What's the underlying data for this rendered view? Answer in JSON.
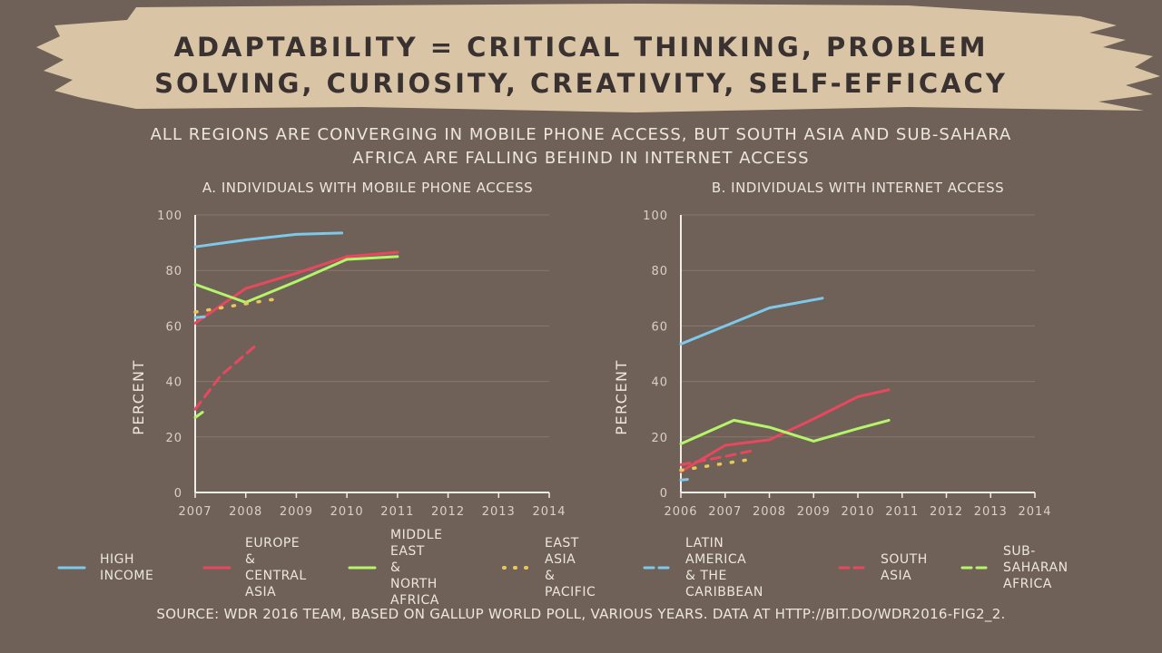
{
  "title_line1": "ADAPTABILITY = CRITICAL THINKING, PROBLEM",
  "title_line2": "SOLVING, CURIOSITY, CREATIVITY, SELF-EFFICACY",
  "subtitle_line1": "ALL REGIONS ARE CONVERGING IN MOBILE PHONE ACCESS, BUT SOUTH ASIA AND SUB-SAHARA",
  "subtitle_line2": "AFRICA ARE FALLING BEHIND IN INTERNET ACCESS",
  "source": "SOURCE: WDR 2016 TEAM, BASED ON GALLUP WORLD POLL, VARIOUS YEARS. DATA AT HTTP://BIT.DO/WDR2016-FIG2_2.",
  "colors": {
    "background": "#6f6158",
    "brush": "#d9c5a6",
    "high_income": "#7ec8ea",
    "europe_central_asia": "#e8485e",
    "middle_east_north_africa": "#b5f56a",
    "east_asia_pacific": "#e9c85a",
    "latin_america_caribbean": "#7ec8ea",
    "south_asia": "#e8485e",
    "sub_saharan_africa": "#b5f56a"
  },
  "legend": [
    {
      "key": "high_income",
      "label": "HIGH\nINCOME",
      "style": "solid"
    },
    {
      "key": "europe_central_asia",
      "label": "EUROPE &\nCENTRAL\nASIA",
      "style": "solid"
    },
    {
      "key": "middle_east_north_africa",
      "label": "MIDDLE EAST\n& NORTH\nAFRICA",
      "style": "solid"
    },
    {
      "key": "east_asia_pacific",
      "label": "EAST ASIA\n& PACIFIC",
      "style": "dotted"
    },
    {
      "key": "latin_america_caribbean",
      "label": "LATIN AMERICA\n& THE CARIBBEAN",
      "style": "dashed"
    },
    {
      "key": "south_asia",
      "label": "SOUTH\nASIA",
      "style": "dashed"
    },
    {
      "key": "sub_saharan_africa",
      "label": "SUB-SAHARAN\nAFRICA",
      "style": "dashed"
    }
  ],
  "chart_data": [
    {
      "type": "line",
      "title": "A. INDIVIDUALS WITH MOBILE PHONE ACCESS",
      "ylabel": "PERCENT",
      "xlabel": "",
      "xlim": [
        2007,
        2014
      ],
      "ylim": [
        0,
        100
      ],
      "x_ticks": [
        "2007",
        "2008",
        "2009",
        "2010",
        "2011",
        "2012",
        "2013",
        "2014"
      ],
      "y_ticks": [
        "0",
        "20",
        "40",
        "60",
        "80",
        "100"
      ],
      "grid": true,
      "series": [
        {
          "name": "HIGH INCOME",
          "key": "high_income",
          "style": "solid",
          "points": [
            [
              2007,
              88.5
            ],
            [
              2008,
              91
            ],
            [
              2009,
              93
            ],
            [
              2009.9,
              93.5
            ]
          ]
        },
        {
          "name": "EUROPE & CENTRAL ASIA",
          "key": "europe_central_asia",
          "style": "solid",
          "points": [
            [
              2007,
              61
            ],
            [
              2008,
              73.5
            ],
            [
              2009,
              79
            ],
            [
              2010,
              85
            ],
            [
              2011,
              86.5
            ]
          ]
        },
        {
          "name": "MIDDLE EAST & NORTH AFRICA",
          "key": "middle_east_north_africa",
          "style": "solid",
          "points": [
            [
              2007,
              75
            ],
            [
              2008,
              68.5
            ],
            [
              2009,
              76
            ],
            [
              2010,
              84
            ],
            [
              2011,
              85
            ]
          ]
        },
        {
          "name": "EAST ASIA & PACIFIC",
          "key": "east_asia_pacific",
          "style": "dotted",
          "points": [
            [
              2007,
              65
            ],
            [
              2007.5,
              66.5
            ],
            [
              2008,
              68
            ],
            [
              2008.7,
              70
            ]
          ]
        },
        {
          "name": "LATIN AMERICA & THE CARIBBEAN",
          "key": "latin_america_caribbean",
          "style": "dashed",
          "points": [
            [
              2007,
              63
            ],
            [
              2007.3,
              63.5
            ]
          ]
        },
        {
          "name": "SOUTH ASIA",
          "key": "south_asia",
          "style": "dashed",
          "points": [
            [
              2007,
              30
            ],
            [
              2007.5,
              42
            ],
            [
              2008.2,
              53
            ]
          ]
        },
        {
          "name": "SUB-SAHARAN AFRICA",
          "key": "sub_saharan_africa",
          "style": "dashed",
          "points": [
            [
              2007,
              27
            ],
            [
              2007.15,
              29
            ]
          ]
        }
      ]
    },
    {
      "type": "line",
      "title": "B. INDIVIDUALS WITH INTERNET ACCESS",
      "ylabel": "PERCENT",
      "xlabel": "",
      "xlim": [
        2006,
        2014
      ],
      "ylim": [
        0,
        100
      ],
      "x_ticks": [
        "2006",
        "2007",
        "2008",
        "2009",
        "2010",
        "2011",
        "2012",
        "2013",
        "2014"
      ],
      "y_ticks": [
        "0",
        "20",
        "40",
        "60",
        "80",
        "100"
      ],
      "grid": true,
      "series": [
        {
          "name": "HIGH INCOME",
          "key": "high_income",
          "style": "solid",
          "points": [
            [
              2006,
              53.5
            ],
            [
              2007,
              60
            ],
            [
              2008,
              66.5
            ],
            [
              2009.2,
              70
            ]
          ]
        },
        {
          "name": "EUROPE & CENTRAL ASIA",
          "key": "europe_central_asia",
          "style": "solid",
          "points": [
            [
              2006,
              7.5
            ],
            [
              2007,
              17
            ],
            [
              2008,
              19
            ],
            [
              2009,
              26.5
            ],
            [
              2010,
              34.5
            ],
            [
              2010.7,
              37
            ]
          ]
        },
        {
          "name": "MIDDLE EAST & NORTH AFRICA",
          "key": "middle_east_north_africa",
          "style": "solid",
          "points": [
            [
              2006,
              17.5
            ],
            [
              2007.2,
              26
            ],
            [
              2008,
              23.5
            ],
            [
              2009,
              18.5
            ],
            [
              2010,
              23
            ],
            [
              2010.7,
              26
            ]
          ]
        },
        {
          "name": "EAST ASIA & PACIFIC",
          "key": "east_asia_pacific",
          "style": "dotted",
          "points": [
            [
              2006,
              8
            ],
            [
              2006.8,
              10
            ],
            [
              2007.6,
              12
            ]
          ]
        },
        {
          "name": "LATIN AMERICA & THE CARIBBEAN",
          "key": "latin_america_caribbean",
          "style": "dashed",
          "points": [
            [
              2006,
              4.5
            ],
            [
              2006.15,
              4.7
            ]
          ]
        },
        {
          "name": "SOUTH ASIA",
          "key": "south_asia",
          "style": "dashed",
          "points": [
            [
              2006,
              10
            ],
            [
              2007,
              13
            ],
            [
              2007.6,
              15
            ]
          ]
        },
        {
          "name": "SUB-SAHARAN AFRICA",
          "key": "sub_saharan_africa",
          "style": "dashed",
          "points": []
        }
      ]
    }
  ]
}
